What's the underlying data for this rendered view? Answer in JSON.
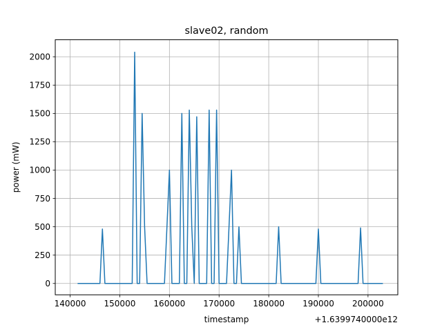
{
  "chart_data": {
    "type": "line",
    "title": "slave02, random",
    "xlabel": "timestamp",
    "ylabel": "power (mW)",
    "x_offset_label": "+1.6399740000e12",
    "xlim": [
      137000,
      206000
    ],
    "ylim": [
      -100,
      2150
    ],
    "x_ticks": [
      140000,
      150000,
      160000,
      170000,
      180000,
      190000,
      200000
    ],
    "x_tick_labels": [
      "140000",
      "150000",
      "160000",
      "170000",
      "180000",
      "190000",
      "200000"
    ],
    "y_ticks": [
      0,
      250,
      500,
      750,
      1000,
      1250,
      1500,
      1750,
      2000
    ],
    "y_tick_labels": [
      "0",
      "250",
      "500",
      "750",
      "1000",
      "1250",
      "1500",
      "1750",
      "2000"
    ],
    "grid": true,
    "legend": "none",
    "series": [
      {
        "color": "#1f77b4",
        "x": [
          141500,
          146000,
          146500,
          147000,
          152500,
          153000,
          153500,
          154000,
          154500,
          155000,
          155500,
          159000,
          160000,
          160500,
          162000,
          162500,
          163000,
          163500,
          164000,
          164500,
          165000,
          165500,
          166000,
          167500,
          168000,
          168500,
          169000,
          169500,
          170000,
          171500,
          172500,
          173000,
          173500,
          174000,
          174500,
          181500,
          182000,
          182500,
          189500,
          190000,
          190500,
          198000,
          198500,
          199000,
          203000
        ],
        "y": [
          0,
          0,
          480,
          0,
          0,
          2040,
          0,
          0,
          1500,
          500,
          0,
          0,
          1000,
          0,
          0,
          1500,
          0,
          0,
          1530,
          500,
          0,
          1470,
          0,
          0,
          1530,
          0,
          0,
          1530,
          0,
          0,
          1000,
          0,
          0,
          500,
          0,
          0,
          500,
          0,
          0,
          480,
          0,
          0,
          490,
          0,
          0
        ]
      }
    ]
  }
}
